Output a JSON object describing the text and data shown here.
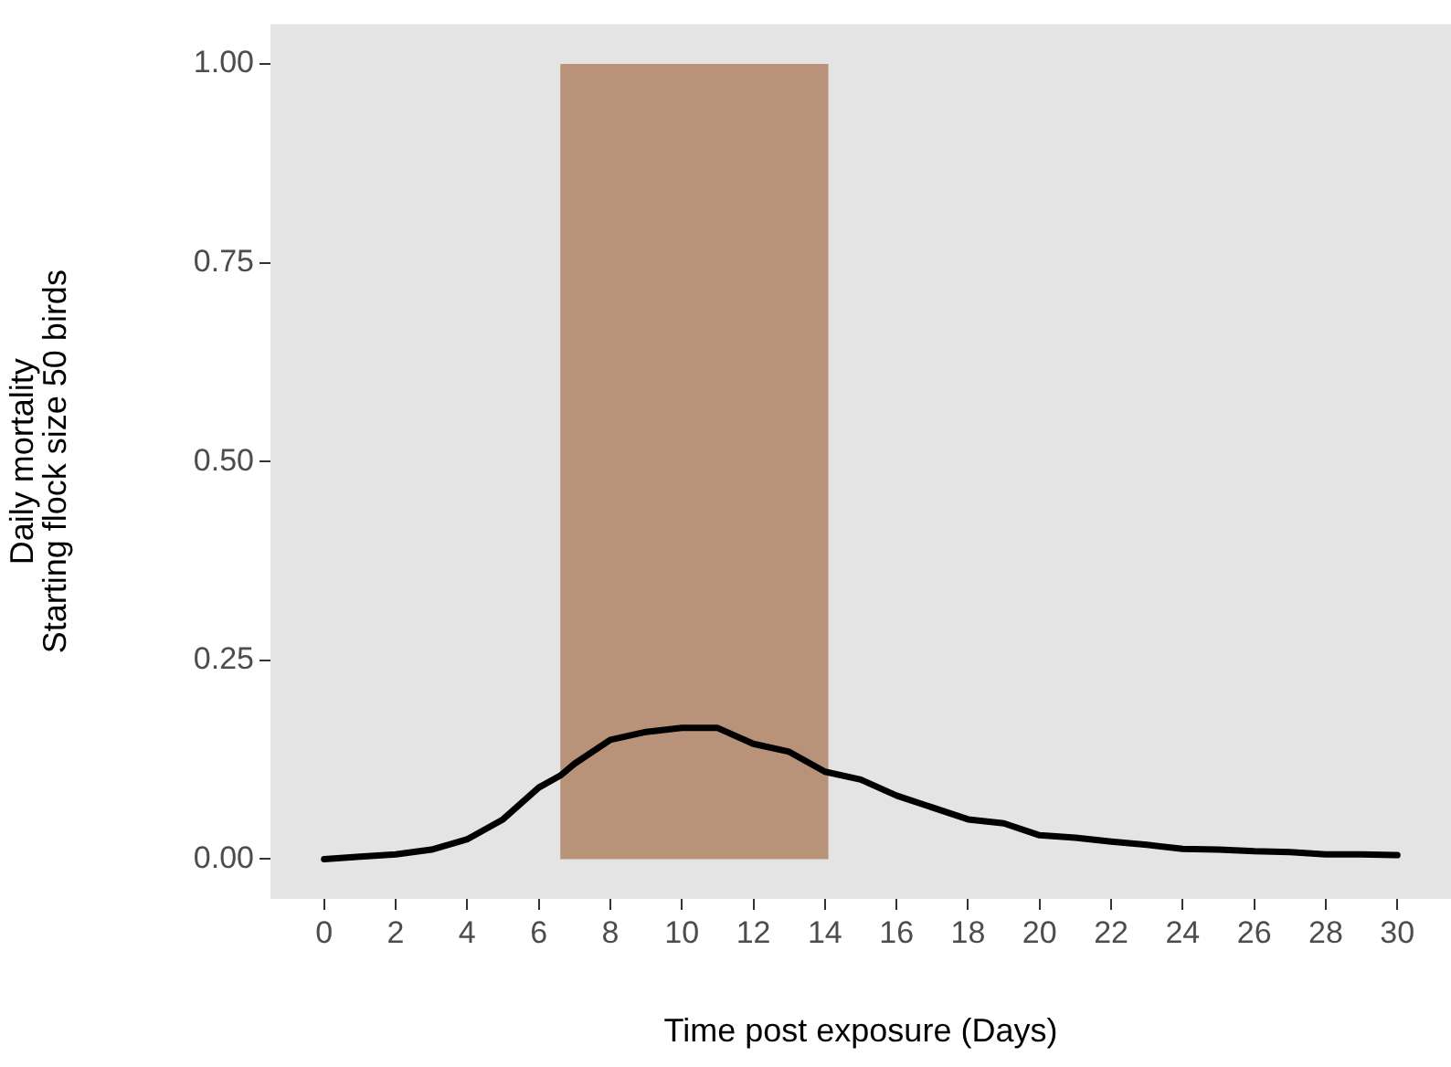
{
  "chart_data": {
    "type": "line",
    "xlabel": "Time post exposure (Days)",
    "ylabel": "Daily mortality\nStarting flock size 50 birds",
    "xlim": [
      -1.5,
      31.5
    ],
    "xticks": [
      0,
      2,
      4,
      6,
      8,
      10,
      12,
      14,
      16,
      18,
      20,
      22,
      24,
      26,
      28,
      30
    ],
    "ylim": [
      -0.05,
      1.05
    ],
    "yticks": [
      {
        "value": 0,
        "label": "0.00"
      },
      {
        "value": 0.25,
        "label": "0.25"
      },
      {
        "value": 0.5,
        "label": "0.50"
      },
      {
        "value": 0.75,
        "label": "0.75"
      },
      {
        "value": 1,
        "label": "1.00"
      }
    ],
    "grid": false,
    "legend": false,
    "marker": "none",
    "line_style": "solid",
    "series": [
      {
        "type": "area",
        "color": "#b8937a",
        "x": [
          6.6,
          14.1
        ],
        "values": [
          1,
          1
        ]
      },
      {
        "type": "line",
        "color": "#000000",
        "x": [
          0,
          1,
          2,
          3,
          4,
          5,
          6,
          6.6,
          7,
          8,
          9,
          10,
          11,
          12,
          13,
          14,
          15,
          16,
          17,
          18,
          19,
          20,
          21,
          22,
          23,
          24,
          25,
          26,
          27,
          28,
          29,
          30
        ],
        "values": [
          0,
          0.003,
          0.006,
          0.012,
          0.025,
          0.05,
          0.09,
          0.105,
          0.12,
          0.15,
          0.16,
          0.165,
          0.165,
          0.145,
          0.135,
          0.11,
          0.1,
          0.08,
          0.065,
          0.05,
          0.045,
          0.03,
          0.027,
          0.022,
          0.018,
          0.013,
          0.012,
          0.01,
          0.009,
          0.006,
          0.006,
          0.005
        ]
      }
    ]
  }
}
